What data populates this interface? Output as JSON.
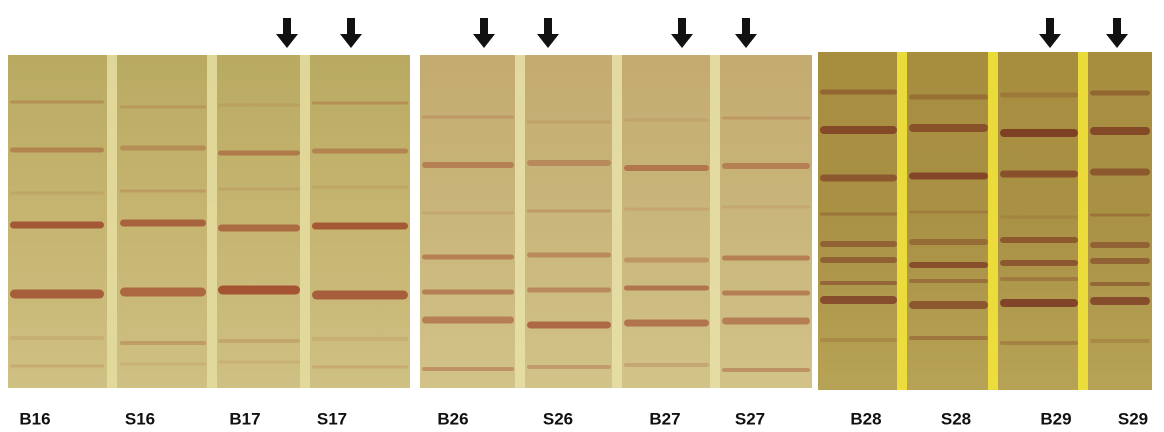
{
  "panels": [
    {
      "lanes": [
        "B16",
        "S16",
        "B17",
        "S17"
      ]
    },
    {
      "lanes": [
        "B26",
        "S26",
        "B27",
        "S27"
      ]
    },
    {
      "lanes": [
        "B28",
        "S28",
        "B29",
        "S29"
      ]
    }
  ]
}
